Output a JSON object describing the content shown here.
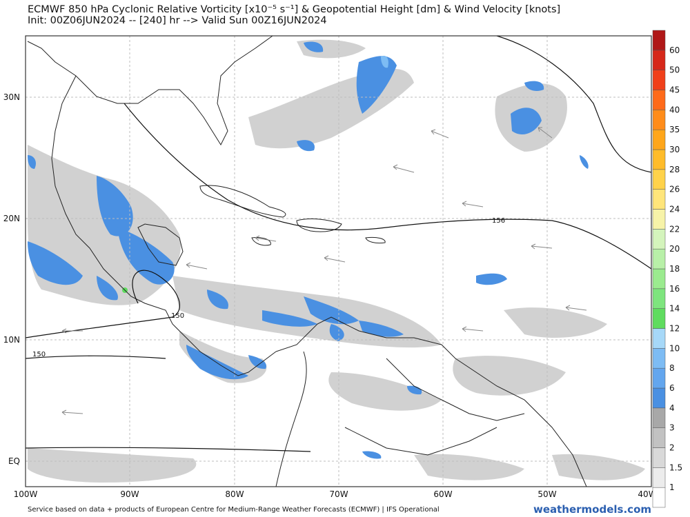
{
  "header": {
    "title_line1": "ECMWF 850 hPa Cyclonic Relative Vorticity [x10⁻⁵ s⁻¹] & Geopotential Height [dm] & Wind Velocity [knots]",
    "title_line2": "Init: 00Z06JUN2024 -- [240] hr --> Valid Sun 00Z16JUN2024"
  },
  "map": {
    "lon_labels": [
      "100W",
      "90W",
      "80W",
      "70W",
      "60W",
      "50W",
      "40W"
    ],
    "lat_labels": [
      "30N",
      "20N",
      "10N",
      "EQ"
    ],
    "contour_labels": [
      "156",
      "150",
      "150"
    ]
  },
  "colorbar": {
    "labels": [
      "60",
      "50",
      "45",
      "40",
      "35",
      "30",
      "28",
      "26",
      "24",
      "22",
      "20",
      "18",
      "16",
      "14",
      "12",
      "10",
      "8",
      "6",
      "4",
      "3",
      "2",
      "1.5",
      "1"
    ],
    "colors": [
      "#ffffff",
      "#ececec",
      "#d9d9d9",
      "#c2c2c2",
      "#a8a8a8",
      "#4a90e2",
      "#63a6ee",
      "#7dbcf4",
      "#a6d8f8",
      "#5fdc5f",
      "#7ee57e",
      "#9beb8f",
      "#b8f0a8",
      "#d4f4bc",
      "#f7f3a8",
      "#ffe57a",
      "#ffd24a",
      "#ffbc2a",
      "#ffa61a",
      "#ff8c1a",
      "#ff6a1a",
      "#f0401a",
      "#d6281a",
      "#b01818"
    ]
  },
  "footer": {
    "credit": "Service based on data + products of European Centre for Medium-Range Weather Forecasts (ECMWF) | IFS Operational",
    "brand": "weathermodels.com"
  }
}
